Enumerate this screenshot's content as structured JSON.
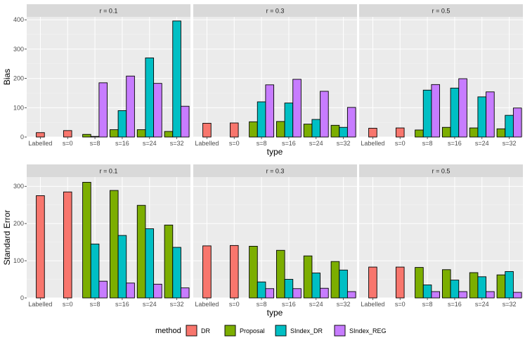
{
  "chart_data": [
    {
      "type": "bar",
      "ylabel": "Bias",
      "xlabel": "type",
      "ylim": [
        0,
        410
      ],
      "yticks": [
        0,
        100,
        200,
        300,
        400
      ],
      "categories": [
        "Labelled",
        "s=0",
        "s=8",
        "s=16",
        "s=24",
        "s=32"
      ],
      "panels": [
        {
          "strip": "r = 0.1",
          "groups": [
            {
              "DR": 15
            },
            {
              "DR": 22
            },
            {
              "Proposal": 9,
              "SIndex_DR": 2,
              "SIndex_REG": 185
            },
            {
              "Proposal": 25,
              "SIndex_DR": 90,
              "SIndex_REG": 208
            },
            {
              "Proposal": 25,
              "SIndex_DR": 270,
              "SIndex_REG": 183
            },
            {
              "Proposal": 19,
              "SIndex_DR": 396,
              "SIndex_REG": 105
            }
          ]
        },
        {
          "strip": "r = 0.3",
          "groups": [
            {
              "DR": 47
            },
            {
              "DR": 48
            },
            {
              "Proposal": 52,
              "SIndex_DR": 120,
              "SIndex_REG": 178
            },
            {
              "Proposal": 53,
              "SIndex_DR": 116,
              "SIndex_REG": 197
            },
            {
              "Proposal": 44,
              "SIndex_DR": 60,
              "SIndex_REG": 156
            },
            {
              "Proposal": 40,
              "SIndex_DR": 33,
              "SIndex_REG": 101
            }
          ]
        },
        {
          "strip": "r = 0.5",
          "groups": [
            {
              "DR": 30
            },
            {
              "DR": 31
            },
            {
              "Proposal": 24,
              "SIndex_DR": 160,
              "SIndex_REG": 179
            },
            {
              "Proposal": 33,
              "SIndex_DR": 167,
              "SIndex_REG": 199
            },
            {
              "Proposal": 31,
              "SIndex_DR": 137,
              "SIndex_REG": 154
            },
            {
              "Proposal": 28,
              "SIndex_DR": 74,
              "SIndex_REG": 99
            }
          ]
        }
      ]
    },
    {
      "type": "bar",
      "ylabel": "Standard Error",
      "xlabel": "type",
      "ylim": [
        0,
        325
      ],
      "yticks": [
        0,
        100,
        200,
        300
      ],
      "categories": [
        "Labelled",
        "s=0",
        "s=8",
        "s=16",
        "s=24",
        "s=32"
      ],
      "panels": [
        {
          "strip": "r = 0.1",
          "groups": [
            {
              "DR": 275
            },
            {
              "DR": 285
            },
            {
              "Proposal": 311,
              "SIndex_DR": 145,
              "SIndex_REG": 45
            },
            {
              "Proposal": 289,
              "SIndex_DR": 168,
              "SIndex_REG": 40
            },
            {
              "Proposal": 249,
              "SIndex_DR": 186,
              "SIndex_REG": 37
            },
            {
              "Proposal": 196,
              "SIndex_DR": 136,
              "SIndex_REG": 27
            }
          ]
        },
        {
          "strip": "r = 0.3",
          "groups": [
            {
              "DR": 140
            },
            {
              "DR": 141
            },
            {
              "Proposal": 139,
              "SIndex_DR": 43,
              "SIndex_REG": 25
            },
            {
              "Proposal": 128,
              "SIndex_DR": 50,
              "SIndex_REG": 25
            },
            {
              "Proposal": 113,
              "SIndex_DR": 67,
              "SIndex_REG": 26
            },
            {
              "Proposal": 98,
              "SIndex_DR": 75,
              "SIndex_REG": 17
            }
          ]
        },
        {
          "strip": "r = 0.5",
          "groups": [
            {
              "DR": 83
            },
            {
              "DR": 83
            },
            {
              "Proposal": 82,
              "SIndex_DR": 35,
              "SIndex_REG": 17
            },
            {
              "Proposal": 76,
              "SIndex_DR": 48,
              "SIndex_REG": 17
            },
            {
              "Proposal": 68,
              "SIndex_DR": 57,
              "SIndex_REG": 17
            },
            {
              "Proposal": 62,
              "SIndex_DR": 71,
              "SIndex_REG": 15
            }
          ]
        }
      ]
    }
  ],
  "legend": {
    "title": "method",
    "position": "bottom",
    "items": [
      {
        "name": "DR",
        "color": "#F8766D"
      },
      {
        "name": "Proposal",
        "color": "#7CAE00"
      },
      {
        "name": "SIndex_DR",
        "color": "#00BFC4"
      },
      {
        "name": "SIndex_REG",
        "color": "#C77CFF"
      }
    ]
  }
}
